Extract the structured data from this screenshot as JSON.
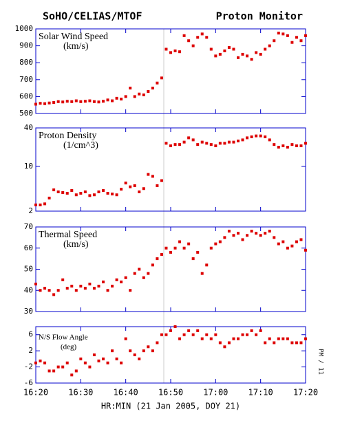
{
  "title_left": "SoHO/CELIAS/MTOF",
  "title_right": "Proton Monitor",
  "chart_data": [
    {
      "type": "scatter",
      "label": "Solar Wind Speed",
      "unit": "(km/s)",
      "color": "#dd0000",
      "xlim": [
        0,
        60
      ],
      "xticks": [
        0,
        10,
        20,
        30,
        40,
        50,
        60
      ],
      "ylim": [
        500,
        1000
      ],
      "yticks": [
        500,
        600,
        700,
        800,
        900,
        1000
      ],
      "x": [
        0,
        1,
        2,
        3,
        4,
        5,
        6,
        7,
        8,
        9,
        10,
        11,
        12,
        13,
        14,
        15,
        16,
        17,
        18,
        19,
        20,
        21,
        22,
        23,
        24,
        25,
        26,
        27,
        28,
        29,
        30,
        31,
        32,
        33,
        34,
        35,
        36,
        37,
        38,
        39,
        40,
        41,
        42,
        43,
        44,
        45,
        46,
        47,
        48,
        49,
        50,
        51,
        52,
        53,
        54,
        55,
        56,
        57,
        58,
        59,
        60
      ],
      "values": [
        555,
        560,
        558,
        562,
        565,
        570,
        568,
        572,
        570,
        575,
        570,
        572,
        575,
        570,
        568,
        572,
        580,
        575,
        590,
        585,
        600,
        650,
        600,
        615,
        610,
        630,
        650,
        680,
        710,
        880,
        860,
        870,
        865,
        960,
        930,
        900,
        950,
        970,
        950,
        880,
        840,
        850,
        870,
        890,
        880,
        830,
        850,
        840,
        820,
        860,
        850,
        880,
        900,
        930,
        975,
        970,
        960,
        920,
        950,
        930,
        960
      ]
    },
    {
      "type": "scatter",
      "label": "Proton Density",
      "unit": "(1/cm^3)",
      "color": "#dd0000",
      "log": true,
      "xlim": [
        0,
        60
      ],
      "xticks": [
        0,
        10,
        20,
        30,
        40,
        50,
        60
      ],
      "ylim": [
        2,
        40
      ],
      "yticks": [
        2,
        10,
        40
      ],
      "x": [
        0,
        1,
        2,
        3,
        4,
        5,
        6,
        7,
        8,
        9,
        10,
        11,
        12,
        13,
        14,
        15,
        16,
        17,
        18,
        19,
        20,
        21,
        22,
        23,
        24,
        25,
        26,
        27,
        28,
        29,
        30,
        31,
        32,
        33,
        34,
        35,
        36,
        37,
        38,
        39,
        40,
        41,
        42,
        43,
        44,
        45,
        46,
        47,
        48,
        49,
        50,
        51,
        52,
        53,
        54,
        55,
        56,
        57,
        58,
        59,
        60
      ],
      "values": [
        2.5,
        2.5,
        2.6,
        3.2,
        4.3,
        4.0,
        3.9,
        3.8,
        4.2,
        3.6,
        3.8,
        4.0,
        3.5,
        3.6,
        4.0,
        4.2,
        3.8,
        3.7,
        3.6,
        4.4,
        5.5,
        4.8,
        5.0,
        4.0,
        4.5,
        7.5,
        7.0,
        5.0,
        6.0,
        23,
        21,
        22,
        22,
        24,
        28,
        26,
        22,
        24,
        23,
        22,
        21,
        23,
        23,
        24,
        24,
        25,
        26,
        28,
        29,
        30,
        30,
        29,
        26,
        22,
        20,
        21,
        20,
        22,
        21,
        21,
        23
      ]
    },
    {
      "type": "scatter",
      "label": "Thermal Speed",
      "unit": "(km/s)",
      "color": "#dd0000",
      "xlim": [
        0,
        60
      ],
      "xticks": [
        0,
        10,
        20,
        30,
        40,
        50,
        60
      ],
      "ylim": [
        30,
        70
      ],
      "yticks": [
        30,
        40,
        50,
        60,
        70
      ],
      "x": [
        0,
        1,
        2,
        3,
        4,
        5,
        6,
        7,
        8,
        9,
        10,
        11,
        12,
        13,
        14,
        15,
        16,
        17,
        18,
        19,
        20,
        21,
        22,
        23,
        24,
        25,
        26,
        27,
        28,
        29,
        30,
        31,
        32,
        33,
        34,
        35,
        36,
        37,
        38,
        39,
        40,
        41,
        42,
        43,
        44,
        45,
        46,
        47,
        48,
        49,
        50,
        51,
        52,
        53,
        54,
        55,
        56,
        57,
        58,
        59,
        60
      ],
      "values": [
        43,
        40,
        41,
        40,
        38,
        40,
        45,
        41,
        42,
        40,
        42,
        41,
        43,
        41,
        42,
        44,
        40,
        42,
        45,
        44,
        46,
        40,
        48,
        50,
        46,
        48,
        52,
        55,
        57,
        60,
        58,
        60,
        63,
        60,
        62,
        55,
        58,
        48,
        52,
        60,
        62,
        63,
        65,
        68,
        66,
        67,
        64,
        66,
        68,
        67,
        66,
        67,
        68,
        65,
        62,
        63,
        60,
        61,
        63,
        64,
        59
      ]
    },
    {
      "type": "scatter",
      "label": "N/S Flow Angle",
      "unit": "(deg)",
      "color": "#dd0000",
      "side_note": "PM / 11",
      "xlim": [
        0,
        60
      ],
      "xlabel": "HR:MIN (21 Jan 2005, DOY 21)",
      "xticks": [
        {
          "value": 0,
          "label": "16:20"
        },
        {
          "value": 10,
          "label": "16:30"
        },
        {
          "value": 20,
          "label": "16:40"
        },
        {
          "value": 30,
          "label": "16:50"
        },
        {
          "value": 40,
          "label": "17:00"
        },
        {
          "value": 50,
          "label": "17:10"
        },
        {
          "value": 60,
          "label": "17:20"
        }
      ],
      "ylim": [
        -6,
        8
      ],
      "yticks": [
        -6,
        -2,
        2,
        6
      ],
      "x": [
        0,
        1,
        2,
        3,
        4,
        5,
        6,
        7,
        8,
        9,
        10,
        11,
        12,
        13,
        14,
        15,
        16,
        17,
        18,
        19,
        20,
        21,
        22,
        23,
        24,
        25,
        26,
        27,
        28,
        29,
        30,
        31,
        32,
        33,
        34,
        35,
        36,
        37,
        38,
        39,
        40,
        41,
        42,
        43,
        44,
        45,
        46,
        47,
        48,
        49,
        50,
        51,
        52,
        53,
        54,
        55,
        56,
        57,
        58,
        59,
        60
      ],
      "values": [
        -1,
        -0.5,
        -1,
        -3,
        -3,
        -2,
        -2,
        -1,
        -4,
        -3,
        0,
        -1,
        -2,
        1,
        -0.5,
        0,
        -1,
        2,
        0,
        -1,
        5,
        2,
        1,
        0,
        2,
        3,
        2,
        4,
        6,
        6,
        7,
        8,
        5,
        6,
        7,
        6,
        7,
        5,
        6,
        5,
        6,
        4,
        3,
        4,
        5,
        5,
        6,
        6,
        7,
        6,
        7,
        4,
        5,
        4,
        5,
        5,
        5,
        4,
        4,
        4,
        5
      ]
    }
  ]
}
